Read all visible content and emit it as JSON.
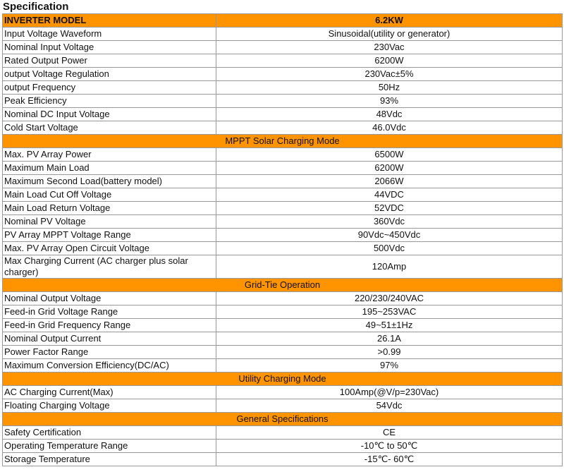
{
  "title": "Specification",
  "header": {
    "label": "INVERTER MODEL",
    "value": "6.2KW"
  },
  "colors": {
    "accent": "#ff9400"
  },
  "groups": [
    {
      "section": null,
      "rows": [
        [
          "Input Voltage Waveform",
          "Sinusoidal(utility or generator)"
        ],
        [
          "Nominal Input Voltage",
          "230Vac"
        ],
        [
          "Rated Output Power",
          "6200W"
        ],
        [
          "output Voltage Regulation",
          "230Vac±5%"
        ],
        [
          "output Frequency",
          "50Hz"
        ],
        [
          "Peak Efficiency",
          "93%"
        ],
        [
          "Nominal DC Input Voltage",
          "48Vdc"
        ],
        [
          "Cold Start Voltage",
          "46.0Vdc"
        ]
      ]
    },
    {
      "section": "MPPT Solar Charging Mode",
      "rows": [
        [
          "Max. PV Array Power",
          "6500W"
        ],
        [
          "Maximum Main Load",
          "6200W"
        ],
        [
          "Maximum Second Load(battery model)",
          "2066W"
        ],
        [
          "Main Load Cut Off Voltage",
          "44VDC"
        ],
        [
          "Main Load Return Voltage",
          "52VDC"
        ],
        [
          "Nominal PV Voltage",
          "360Vdc"
        ],
        [
          "PV Array MPPT Voltage Range",
          "90Vdc~450Vdc"
        ],
        [
          "Max. PV Array Open Circuit Voltage",
          "500Vdc"
        ],
        [
          "Max Charging Current (AC charger plus solar charger)",
          "120Amp"
        ]
      ]
    },
    {
      "section": "Grid-Tie Operation",
      "rows": [
        [
          "Nominal Output Voltage",
          "220/230/240VAC"
        ],
        [
          "Feed-in Grid Voltage Range",
          "195~253VAC"
        ],
        [
          "Feed-in Grid Frequency Range",
          "49~51±1Hz"
        ],
        [
          "Nominal Output Current",
          "26.1A"
        ],
        [
          "Power Factor Range",
          ">0.99"
        ],
        [
          "Maximum Conversion Efficiency(DC/AC)",
          "97%"
        ]
      ]
    },
    {
      "section": "Utility Charging Mode",
      "rows": [
        [
          "AC Charging Current(Max)",
          "100Amp(@V/p=230Vac)"
        ],
        [
          "Floating Charging Voltage",
          "54Vdc"
        ]
      ]
    },
    {
      "section": "General Specifications",
      "rows": [
        [
          "Safety Certification",
          "CE"
        ],
        [
          "Operating Temperature Range",
          "-10℃ to 50℃"
        ],
        [
          "Storage Temperature",
          "-15℃- 60℃"
        ]
      ]
    }
  ]
}
